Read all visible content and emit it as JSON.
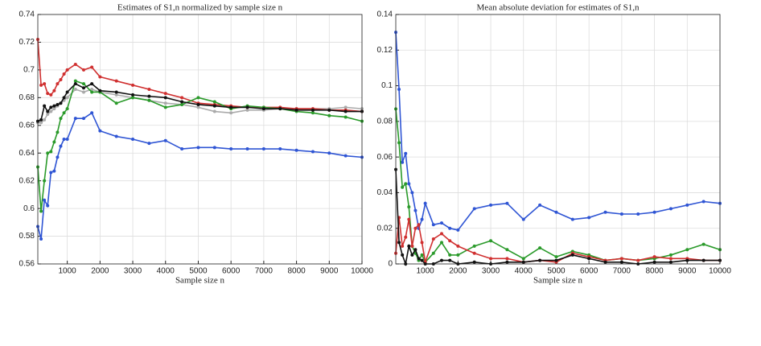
{
  "chart_data": [
    {
      "type": "line",
      "title": "Estimates of S1,n normalized by sample size n",
      "xlabel": "Sample size n",
      "x": [
        100,
        200,
        300,
        400,
        500,
        600,
        700,
        800,
        900,
        1000,
        1250,
        1500,
        1750,
        2000,
        2500,
        3000,
        3500,
        4000,
        4500,
        5000,
        5500,
        6000,
        6500,
        7000,
        7500,
        8000,
        8500,
        9000,
        9500,
        10000
      ],
      "xlim": [
        100,
        10000
      ],
      "xticks": [
        1000,
        2000,
        3000,
        4000,
        5000,
        6000,
        7000,
        8000,
        9000,
        10000
      ],
      "ylim": [
        0.56,
        0.74
      ],
      "yticks": [
        0.56,
        0.58,
        0.6,
        0.62,
        0.64,
        0.66,
        0.68,
        0.7,
        0.72,
        0.74
      ],
      "grid": true,
      "series": [
        {
          "color": "#aaaaaa",
          "values": [
            0.662,
            0.662,
            0.664,
            0.668,
            0.67,
            0.672,
            0.674,
            0.676,
            0.678,
            0.68,
            0.686,
            0.684,
            0.686,
            0.684,
            0.682,
            0.68,
            0.678,
            0.676,
            0.675,
            0.673,
            0.67,
            0.669,
            0.671,
            0.671,
            0.672,
            0.672,
            0.672,
            0.672,
            0.673,
            0.672
          ]
        },
        {
          "color": "#d03030",
          "values": [
            0.722,
            0.689,
            0.69,
            0.683,
            0.682,
            0.685,
            0.69,
            0.693,
            0.697,
            0.7,
            0.704,
            0.7,
            0.702,
            0.695,
            0.692,
            0.689,
            0.686,
            0.683,
            0.68,
            0.676,
            0.675,
            0.674,
            0.673,
            0.673,
            0.673,
            0.672,
            0.672,
            0.671,
            0.671,
            0.67
          ]
        },
        {
          "color": "#2a9a2a",
          "values": [
            0.63,
            0.598,
            0.62,
            0.64,
            0.641,
            0.648,
            0.655,
            0.665,
            0.669,
            0.672,
            0.692,
            0.69,
            0.684,
            0.684,
            0.676,
            0.68,
            0.678,
            0.673,
            0.675,
            0.68,
            0.677,
            0.672,
            0.674,
            0.673,
            0.672,
            0.67,
            0.669,
            0.667,
            0.666,
            0.663
          ]
        },
        {
          "color": "#2f55d4",
          "values": [
            0.587,
            0.578,
            0.606,
            0.602,
            0.626,
            0.627,
            0.637,
            0.645,
            0.65,
            0.65,
            0.665,
            0.665,
            0.669,
            0.656,
            0.652,
            0.65,
            0.647,
            0.649,
            0.643,
            0.644,
            0.644,
            0.643,
            0.643,
            0.643,
            0.643,
            0.642,
            0.641,
            0.64,
            0.638,
            0.637
          ]
        },
        {
          "color": "#111111",
          "values": [
            0.663,
            0.664,
            0.674,
            0.67,
            0.673,
            0.674,
            0.675,
            0.676,
            0.68,
            0.684,
            0.69,
            0.687,
            0.69,
            0.685,
            0.684,
            0.682,
            0.681,
            0.68,
            0.677,
            0.675,
            0.674,
            0.673,
            0.673,
            0.672,
            0.672,
            0.671,
            0.671,
            0.671,
            0.67,
            0.67
          ]
        }
      ]
    },
    {
      "type": "line",
      "title": "Mean absolute deviation for estimates of S1,n",
      "xlabel": "Sample size n",
      "x": [
        100,
        200,
        300,
        400,
        500,
        600,
        700,
        800,
        900,
        1000,
        1250,
        1500,
        1750,
        2000,
        2500,
        3000,
        3500,
        4000,
        4500,
        5000,
        5500,
        6000,
        6500,
        7000,
        7500,
        8000,
        8500,
        9000,
        9500,
        10000
      ],
      "xlim": [
        100,
        10000
      ],
      "xticks": [
        1000,
        2000,
        3000,
        4000,
        5000,
        6000,
        7000,
        8000,
        9000,
        10000
      ],
      "ylim": [
        0,
        0.14
      ],
      "yticks": [
        0,
        0.02,
        0.04,
        0.06,
        0.08,
        0.1,
        0.12,
        0.14
      ],
      "grid": true,
      "series": [
        {
          "color": "#2f55d4",
          "values": [
            0.13,
            0.098,
            0.057,
            0.062,
            0.045,
            0.04,
            0.03,
            0.02,
            0.025,
            0.034,
            0.022,
            0.023,
            0.02,
            0.019,
            0.031,
            0.033,
            0.034,
            0.025,
            0.033,
            0.029,
            0.025,
            0.026,
            0.029,
            0.028,
            0.028,
            0.029,
            0.031,
            0.033,
            0.035,
            0.034
          ]
        },
        {
          "color": "#2a9a2a",
          "values": [
            0.087,
            0.068,
            0.043,
            0.045,
            0.032,
            0.01,
            0.006,
            0.002,
            0.005,
            0.001,
            0.006,
            0.012,
            0.005,
            0.005,
            0.01,
            0.013,
            0.008,
            0.003,
            0.009,
            0.004,
            0.007,
            0.005,
            0.002,
            0.003,
            0.002,
            0.003,
            0.005,
            0.008,
            0.011,
            0.008
          ]
        },
        {
          "color": "#d03030",
          "values": [
            0.006,
            0.026,
            0.01,
            0.015,
            0.025,
            0.01,
            0.02,
            0.022,
            0.012,
            0.001,
            0.014,
            0.017,
            0.013,
            0.01,
            0.006,
            0.003,
            0.003,
            0.001,
            0.002,
            0.001,
            0.006,
            0.004,
            0.002,
            0.003,
            0.002,
            0.004,
            0.003,
            0.003,
            0.002,
            0.002
          ]
        },
        {
          "color": "#111111",
          "values": [
            0.053,
            0.012,
            0.005,
            0.0,
            0.01,
            0.005,
            0.008,
            0.003,
            0.002,
            0.0,
            0.0,
            0.002,
            0.002,
            0.0,
            0.001,
            0.0,
            0.001,
            0.001,
            0.002,
            0.002,
            0.005,
            0.003,
            0.001,
            0.001,
            0.0,
            0.001,
            0.001,
            0.002,
            0.002,
            0.002
          ]
        }
      ]
    }
  ]
}
